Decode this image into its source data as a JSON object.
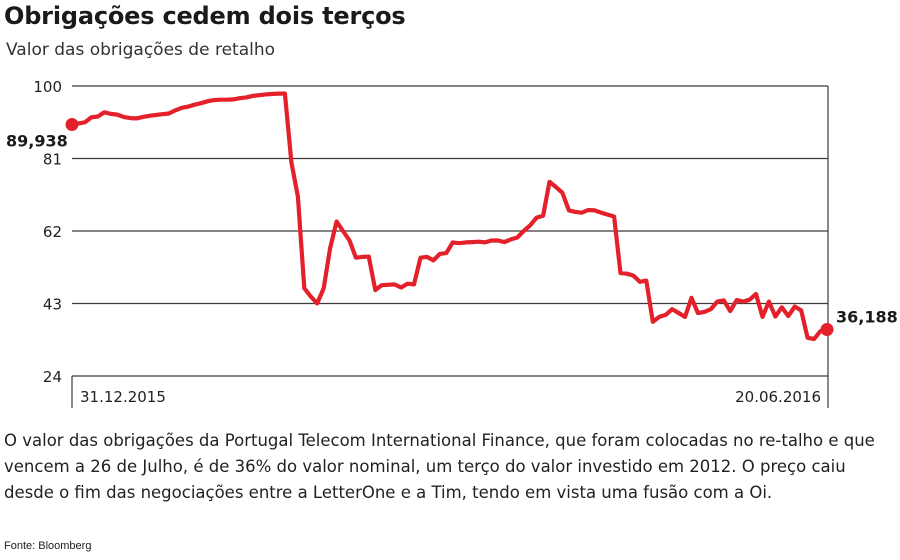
{
  "header": {
    "title": "Obrigações cedem dois terços",
    "subtitle": "Valor das obrigações de retalho"
  },
  "chart_data": {
    "type": "line",
    "title": "Obrigações cedem dois terços",
    "subtitle": "Valor das obrigações de retalho",
    "xlabel": "",
    "ylabel": "",
    "ylim": [
      24,
      100
    ],
    "yticks": [
      24,
      43,
      62,
      81,
      100
    ],
    "grid": true,
    "x_start_label": "31.12.2015",
    "x_end_label": "20.06.2016",
    "start_value_label": "89,938",
    "end_value_label": "36,188",
    "line_color": "#e4202b",
    "series": [
      {
        "values": [
          89.9,
          90.2,
          90.5,
          91.8,
          92.0,
          93.1,
          92.7,
          92.5,
          91.9,
          91.6,
          91.5,
          91.9,
          92.2,
          92.4,
          92.6,
          92.8,
          93.6,
          94.3,
          94.6,
          95.1,
          95.5,
          96.0,
          96.3,
          96.4,
          96.4,
          96.5,
          96.8,
          97.0,
          97.4,
          97.6,
          97.8,
          97.9,
          98.0,
          98.0,
          80.0,
          71.0,
          47.0,
          44.8,
          43.0,
          47.0,
          57.5,
          64.5,
          62.0,
          59.5,
          55.0,
          55.2,
          55.3,
          46.5,
          47.8,
          47.9,
          48.0,
          47.2,
          48.2,
          48.0,
          55.0,
          55.2,
          54.3,
          56.0,
          56.2,
          59.0,
          58.8,
          59.0,
          59.1,
          59.2,
          59.0,
          59.5,
          59.5,
          59.1,
          59.8,
          60.3,
          62.0,
          63.5,
          65.5,
          66.0,
          74.9,
          73.5,
          72.0,
          67.4,
          67.0,
          66.8,
          67.5,
          67.4,
          66.8,
          66.3,
          65.8,
          51.0,
          50.8,
          50.3,
          48.7,
          49.0,
          38.2,
          39.5,
          40.0,
          41.5,
          40.5,
          39.5,
          44.5,
          40.5,
          40.8,
          41.5,
          43.5,
          43.8,
          41.0,
          43.9,
          43.5,
          44.0,
          45.5,
          39.5,
          43.5,
          39.6,
          42.0,
          39.7,
          42.2,
          41.2,
          34.0,
          33.7,
          35.8,
          36.188
        ]
      }
    ]
  },
  "caption": "O valor das obrigações da Portugal Telecom International Finance, que foram colocadas no re-talho e que vencem a 26 de Julho, é de 36% do valor nominal, um terço do valor investido em 2012. O preço caiu desde o fim das negociações entre a LetterOne e a Tim, tendo em vista uma fusão com a Oi.",
  "source": "Fonte: Bloomberg"
}
